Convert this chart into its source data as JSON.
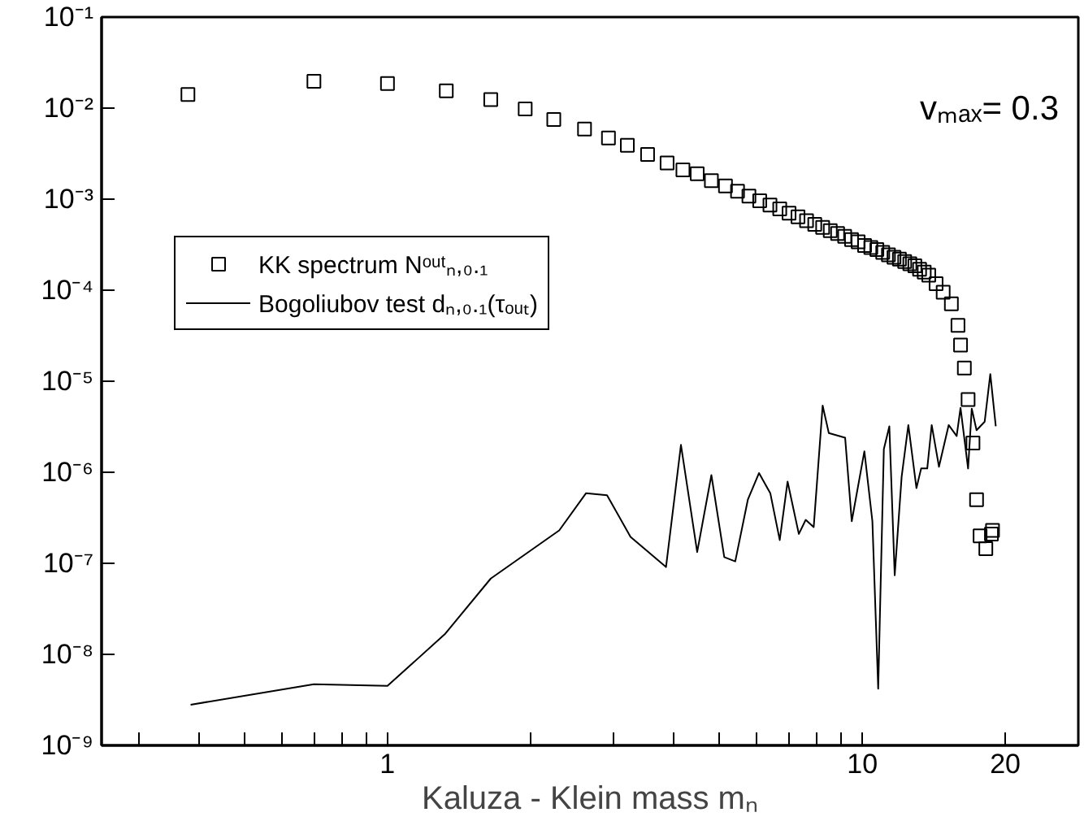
{
  "chart_data": {
    "type": "scatter",
    "xlabel": "Kaluza - Klein mass mₙ",
    "log": "xy",
    "legend": "left",
    "grid": false,
    "marker": "square",
    "xlim": [
      0.25,
      28.5
    ],
    "ylim": [
      1e-09,
      0.1
    ],
    "xticks": [
      {
        "value": 0.3,
        "label": null
      },
      {
        "value": 0.4,
        "label": null
      },
      {
        "value": 0.5,
        "label": null
      },
      {
        "value": 0.6,
        "label": null
      },
      {
        "value": 0.7,
        "label": null
      },
      {
        "value": 0.8,
        "label": null
      },
      {
        "value": 0.9,
        "label": null
      },
      1,
      {
        "value": 2,
        "label": null
      },
      {
        "value": 3,
        "label": null
      },
      {
        "value": 4,
        "label": null
      },
      {
        "value": 5,
        "label": null
      },
      {
        "value": 6,
        "label": null
      },
      {
        "value": 7,
        "label": null
      },
      {
        "value": 8,
        "label": null
      },
      {
        "value": 9,
        "label": null
      },
      10,
      20
    ],
    "yticks": [
      {
        "value": 1e-09,
        "label": "10⁻⁹"
      },
      {
        "value": 1e-08,
        "label": "10⁻⁸"
      },
      {
        "value": 1e-07,
        "label": "10⁻⁷"
      },
      {
        "value": 1e-06,
        "label": "10⁻⁶"
      },
      {
        "value": 1e-05,
        "label": "10⁻⁵"
      },
      {
        "value": 0.0001,
        "label": "10⁻⁴"
      },
      {
        "value": 0.001,
        "label": "10⁻³"
      },
      {
        "value": 0.01,
        "label": "10⁻²"
      },
      {
        "value": 0.1,
        "label": "10⁻¹"
      }
    ],
    "annotations": [
      "vₘₐₓ= 0.3"
    ],
    "series": [
      {
        "name": "KK spectrum Nᵒᵘᵗₙ,₀.₁",
        "color": "#000000",
        "x": [
          0.38,
          0.7,
          1.0,
          1.33,
          1.65,
          1.95,
          2.24,
          2.6,
          2.92,
          3.2,
          3.53,
          3.88,
          4.19,
          4.49,
          4.81,
          5.15,
          5.46,
          5.77,
          6.08,
          6.39,
          6.7,
          7.01,
          7.32,
          7.63,
          7.94,
          8.25,
          8.56,
          8.87,
          9.18,
          9.49,
          9.8,
          10.11,
          10.42,
          10.73,
          11.04,
          11.35,
          11.66,
          11.97,
          12.28,
          12.59,
          12.9,
          13.2,
          13.5,
          13.8,
          14.3,
          14.8,
          15.4,
          15.9,
          16.1,
          16.4,
          16.7,
          17.1,
          17.4,
          17.7,
          18.2,
          18.7,
          18.8
        ],
        "values": [
          0.0141,
          0.0197,
          0.0186,
          0.0155,
          0.0124,
          0.0098,
          0.0075,
          0.0059,
          0.0047,
          0.0039,
          0.0031,
          0.0025,
          0.0021,
          0.0019,
          0.0016,
          0.0014,
          0.00122,
          0.00108,
          0.00096,
          0.00086,
          0.00078,
          0.0007,
          0.00064,
          0.00058,
          0.00053,
          0.00049,
          0.00045,
          0.00042,
          0.00039,
          0.00036,
          0.00034,
          0.00031,
          0.000295,
          0.00028,
          0.00026,
          0.000245,
          0.00023,
          0.00022,
          0.000206,
          0.000195,
          0.000185,
          0.00017,
          0.000158,
          0.000146,
          0.000118,
          9.5e-05,
          7.1e-05,
          4.1e-05,
          2.5e-05,
          1.4e-05,
          6.3e-06,
          2.1e-06,
          5e-07,
          2e-07,
          1.45e-07,
          2.1e-07,
          2.3e-07
        ]
      },
      {
        "name": "Bogoliubov test dₙ,₀.₁(τₒᵤₜ)",
        "type": "line",
        "marker": "none",
        "line_style": "solid",
        "color": "#000000",
        "x": [
          0.385,
          0.7,
          1.0,
          1.32,
          1.65,
          2.3,
          2.62,
          2.9,
          3.25,
          3.86,
          4.15,
          4.49,
          4.81,
          5.12,
          5.4,
          5.74,
          6.06,
          6.4,
          6.7,
          6.96,
          7.35,
          7.6,
          7.9,
          8.25,
          8.5,
          9.2,
          9.5,
          10.1,
          10.5,
          10.8,
          11.1,
          11.4,
          11.7,
          12.1,
          12.5,
          13.0,
          13.3,
          13.7,
          14.0,
          14.5,
          15.2,
          15.8,
          16.1,
          16.7,
          17.0,
          17.4,
          18.1,
          18.6,
          19.1
        ],
        "values": [
          2.8e-09,
          4.7e-09,
          4.5e-09,
          1.66e-08,
          6.8e-08,
          2.3e-07,
          5.9e-07,
          5.6e-07,
          1.95e-07,
          9.1e-08,
          2e-06,
          1.33e-07,
          9.3e-07,
          1.17e-07,
          1.05e-07,
          5e-07,
          9.8e-07,
          5.9e-07,
          1.8e-07,
          7.9e-07,
          2.1e-07,
          3e-07,
          2.5e-07,
          5.4e-06,
          2.7e-06,
          2.4e-06,
          2.9e-07,
          1.7e-06,
          2.9e-07,
          4.2e-09,
          1.8e-06,
          3.2e-06,
          7.4e-08,
          8.9e-07,
          3.3e-06,
          6.7e-07,
          1.1e-06,
          1.1e-06,
          3.3e-06,
          1.15e-06,
          3.3e-06,
          2.5e-06,
          5.1e-06,
          1.1e-06,
          5e-06,
          2.9e-06,
          3.6e-06,
          1.2e-05,
          3.2e-06
        ]
      }
    ]
  }
}
